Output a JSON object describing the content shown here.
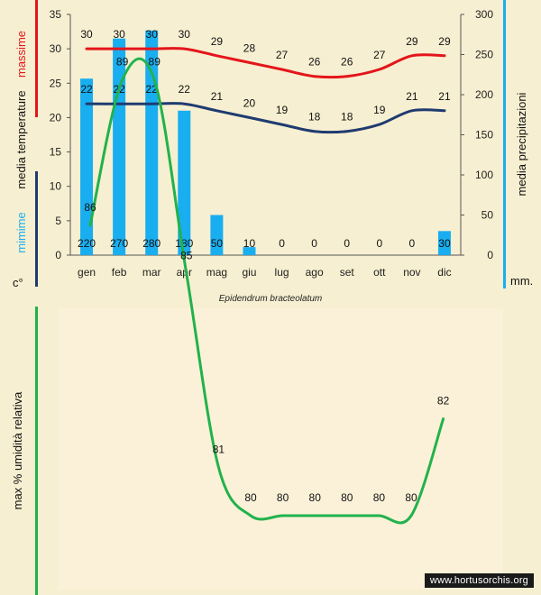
{
  "chart_data": [
    {
      "type": "bar+line",
      "title": "",
      "categories": [
        "gen",
        "feb",
        "mar",
        "apr",
        "mag",
        "giu",
        "lug",
        "ago",
        "set",
        "ott",
        "nov",
        "dic"
      ],
      "left_axis": {
        "label_parts": [
          "c°",
          "mimime",
          "media temperature",
          "massime"
        ],
        "ylim": [
          0,
          35
        ],
        "ticks": [
          0,
          5,
          10,
          15,
          20,
          25,
          30,
          35
        ]
      },
      "right_axis": {
        "label": "media precipitazioni",
        "unit": "mm.",
        "ylim": [
          0,
          300
        ],
        "ticks": [
          0,
          50,
          100,
          150,
          200,
          250,
          300
        ]
      },
      "series": [
        {
          "name": "massime",
          "kind": "line",
          "axis": "left",
          "color": "#e4151b",
          "values": [
            30,
            30,
            30,
            30,
            29,
            28,
            27,
            26,
            26,
            27,
            29,
            29
          ]
        },
        {
          "name": "mimime",
          "kind": "line",
          "axis": "left",
          "color": "#1f3b70",
          "values": [
            22,
            22,
            22,
            22,
            21,
            20,
            19,
            18,
            18,
            19,
            21,
            21
          ]
        },
        {
          "name": "media precipitazioni",
          "kind": "bar",
          "axis": "right",
          "color": "#19aef0",
          "values": [
            220,
            270,
            280,
            180,
            50,
            10,
            0,
            0,
            0,
            0,
            0,
            30
          ]
        }
      ]
    },
    {
      "type": "line",
      "title": "Epidendrum bracteolatum",
      "ylabel": "max % umidità relativa",
      "series": [
        {
          "name": "",
          "color": "#22b24c",
          "values": [
            86,
            89,
            89,
            85,
            81,
            80,
            80,
            80,
            80,
            80,
            80,
            82
          ]
        }
      ]
    }
  ],
  "credit": "www.hortusorchis.org",
  "colors": {
    "background": "#f7efd1",
    "panel": "#fbf1d8",
    "max": "#e4151b",
    "min": "#1f3b70",
    "rain": "#19aef0",
    "humidity": "#22b24c"
  }
}
